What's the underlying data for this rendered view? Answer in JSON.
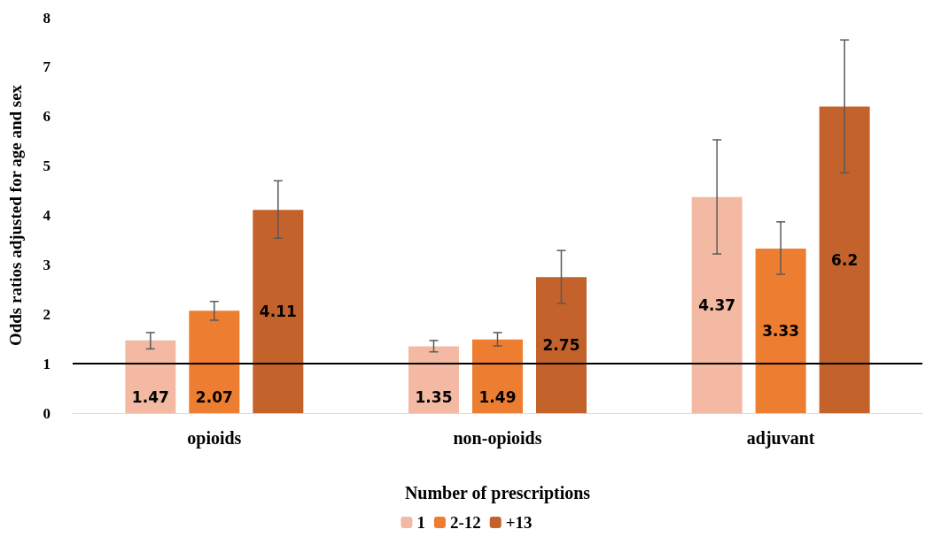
{
  "chart_data": {
    "type": "bar",
    "ylabel": "Odds ratios adjusted for age and sex",
    "xlabel": "Number of prescriptions",
    "categories": [
      "opioids",
      "non-opioids",
      "adjuvant"
    ],
    "series": [
      {
        "name": "1",
        "color": "#f4b9a2",
        "values": [
          1.47,
          1.35,
          4.37
        ],
        "errors": [
          [
            1.3,
            1.63
          ],
          [
            1.24,
            1.47
          ],
          [
            3.22,
            5.53
          ]
        ]
      },
      {
        "name": "2-12",
        "color": "#ed7d31",
        "values": [
          2.07,
          1.49,
          3.33
        ],
        "errors": [
          [
            1.88,
            2.26
          ],
          [
            1.36,
            1.63
          ],
          [
            2.81,
            3.87
          ]
        ]
      },
      {
        "name": "+13",
        "color": "#c3622b",
        "values": [
          4.11,
          2.75,
          6.2
        ],
        "errors": [
          [
            3.54,
            4.7
          ],
          [
            2.22,
            3.29
          ],
          [
            4.86,
            7.55
          ]
        ]
      }
    ],
    "ylim": [
      0,
      8
    ],
    "yticks": [
      0,
      1,
      2,
      3,
      4,
      5,
      6,
      7,
      8
    ],
    "grid": false,
    "legend": "bottom",
    "data_labels": true,
    "ref_lines": [
      {
        "axis": "y",
        "value": 1,
        "color": "#000000"
      }
    ]
  }
}
